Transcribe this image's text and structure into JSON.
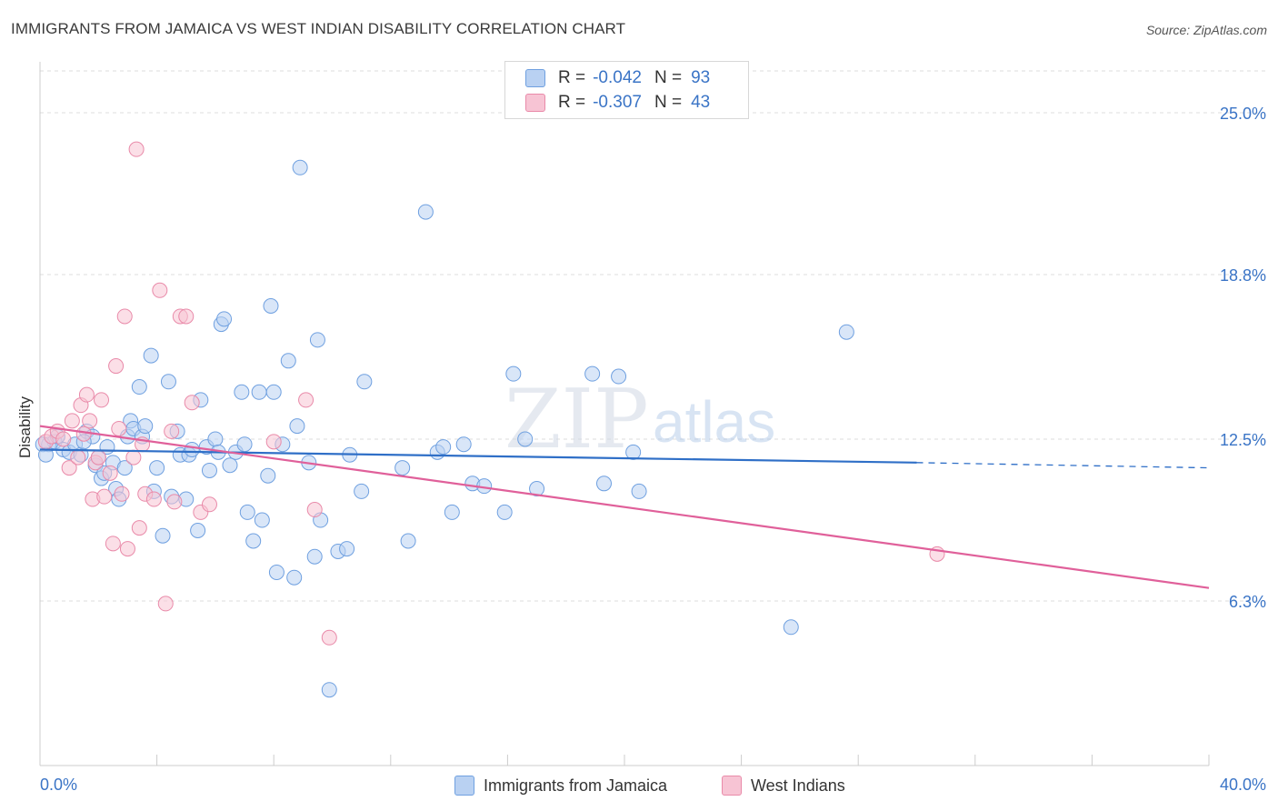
{
  "title": "IMMIGRANTS FROM JAMAICA VS WEST INDIAN DISABILITY CORRELATION CHART",
  "source": "Source: ZipAtlas.com",
  "watermark": {
    "part1": "ZIP",
    "part2": "atlas"
  },
  "legend": [
    {
      "r_label": "R =",
      "r_value": "-0.042",
      "n_label": "N =",
      "n_value": "93"
    },
    {
      "r_label": "R =",
      "r_value": "-0.307",
      "n_label": "N =",
      "n_value": "43"
    }
  ],
  "chart_data": {
    "type": "scatter",
    "title": "IMMIGRANTS FROM JAMAICA VS WEST INDIAN DISABILITY CORRELATION CHART",
    "xlabel": "",
    "ylabel": "Disability",
    "xlim": [
      0,
      40
    ],
    "ylim": [
      0,
      26.6
    ],
    "x_tick_labels": [
      "0.0%",
      "40.0%"
    ],
    "y_ticks": [
      6.3,
      12.5,
      18.8,
      25.0
    ],
    "y_tick_labels": [
      "6.3%",
      "12.5%",
      "18.8%",
      "25.0%"
    ],
    "grid": true,
    "legend_position": "bottom",
    "series": [
      {
        "name": "Immigrants from Jamaica",
        "color": "#6fa0e0",
        "fill": "#b9d1f2",
        "trend": {
          "x1": 0,
          "y1": 12.1,
          "x2": 30,
          "y2": 11.6,
          "dash_to_x": 40,
          "dash_to_y": 11.4,
          "color": "#2f6fc7"
        },
        "points": [
          [
            0.3,
            12.3
          ],
          [
            0.5,
            12.4
          ],
          [
            0.6,
            12.6
          ],
          [
            0.8,
            12.1
          ],
          [
            1.0,
            12.0
          ],
          [
            1.2,
            12.3
          ],
          [
            1.4,
            11.9
          ],
          [
            1.6,
            12.8
          ],
          [
            1.8,
            12.6
          ],
          [
            1.9,
            11.5
          ],
          [
            2.0,
            11.8
          ],
          [
            2.1,
            11.0
          ],
          [
            2.2,
            11.2
          ],
          [
            2.3,
            12.2
          ],
          [
            2.5,
            11.6
          ],
          [
            2.6,
            10.6
          ],
          [
            2.7,
            10.2
          ],
          [
            2.9,
            11.4
          ],
          [
            3.0,
            12.6
          ],
          [
            3.1,
            13.2
          ],
          [
            3.2,
            12.9
          ],
          [
            3.4,
            14.5
          ],
          [
            3.5,
            12.6
          ],
          [
            3.6,
            13.0
          ],
          [
            3.8,
            15.7
          ],
          [
            3.9,
            10.5
          ],
          [
            4.0,
            11.4
          ],
          [
            4.2,
            8.8
          ],
          [
            4.4,
            14.7
          ],
          [
            4.5,
            10.3
          ],
          [
            4.7,
            12.8
          ],
          [
            4.8,
            11.9
          ],
          [
            5.0,
            10.2
          ],
          [
            5.1,
            11.9
          ],
          [
            5.2,
            12.1
          ],
          [
            5.4,
            9.0
          ],
          [
            5.5,
            14.0
          ],
          [
            5.7,
            12.2
          ],
          [
            5.8,
            11.3
          ],
          [
            6.0,
            12.5
          ],
          [
            6.1,
            12.0
          ],
          [
            6.2,
            16.9
          ],
          [
            6.3,
            17.1
          ],
          [
            6.5,
            11.5
          ],
          [
            6.7,
            12.0
          ],
          [
            6.9,
            14.3
          ],
          [
            7.0,
            12.3
          ],
          [
            7.1,
            9.7
          ],
          [
            7.3,
            8.6
          ],
          [
            7.5,
            14.3
          ],
          [
            7.6,
            9.4
          ],
          [
            7.8,
            11.1
          ],
          [
            7.9,
            17.6
          ],
          [
            8.0,
            14.3
          ],
          [
            8.1,
            7.4
          ],
          [
            8.3,
            12.3
          ],
          [
            8.5,
            15.5
          ],
          [
            8.7,
            7.2
          ],
          [
            8.8,
            13.0
          ],
          [
            8.9,
            22.9
          ],
          [
            9.2,
            11.6
          ],
          [
            9.4,
            8.0
          ],
          [
            9.5,
            16.3
          ],
          [
            9.6,
            9.4
          ],
          [
            9.9,
            2.9
          ],
          [
            10.2,
            8.2
          ],
          [
            10.5,
            8.3
          ],
          [
            10.6,
            11.9
          ],
          [
            11.0,
            10.5
          ],
          [
            11.1,
            14.7
          ],
          [
            12.4,
            11.4
          ],
          [
            12.6,
            8.6
          ],
          [
            13.2,
            21.2
          ],
          [
            13.6,
            12.0
          ],
          [
            13.8,
            12.2
          ],
          [
            14.1,
            9.7
          ],
          [
            14.5,
            12.3
          ],
          [
            14.8,
            10.8
          ],
          [
            15.2,
            10.7
          ],
          [
            15.9,
            9.7
          ],
          [
            16.2,
            15.0
          ],
          [
            16.6,
            12.5
          ],
          [
            17.0,
            10.6
          ],
          [
            18.9,
            15.0
          ],
          [
            19.3,
            10.8
          ],
          [
            19.8,
            14.9
          ],
          [
            20.3,
            12.0
          ],
          [
            20.5,
            10.5
          ],
          [
            25.7,
            5.3
          ],
          [
            27.6,
            16.6
          ],
          [
            0.1,
            12.3
          ],
          [
            0.2,
            11.9
          ],
          [
            1.5,
            12.4
          ]
        ]
      },
      {
        "name": "West Indians",
        "color": "#e98aa9",
        "fill": "#f7c4d4",
        "trend": {
          "x1": 0,
          "y1": 13.0,
          "x2": 40,
          "y2": 6.8,
          "color": "#e0609a"
        },
        "points": [
          [
            0.2,
            12.4
          ],
          [
            0.4,
            12.6
          ],
          [
            0.6,
            12.8
          ],
          [
            0.8,
            12.5
          ],
          [
            1.0,
            11.4
          ],
          [
            1.1,
            13.2
          ],
          [
            1.3,
            11.8
          ],
          [
            1.4,
            13.8
          ],
          [
            1.5,
            12.7
          ],
          [
            1.6,
            14.2
          ],
          [
            1.7,
            13.2
          ],
          [
            1.8,
            10.2
          ],
          [
            1.9,
            11.6
          ],
          [
            2.0,
            11.8
          ],
          [
            2.1,
            14.0
          ],
          [
            2.2,
            10.3
          ],
          [
            2.4,
            11.2
          ],
          [
            2.5,
            8.5
          ],
          [
            2.6,
            15.3
          ],
          [
            2.7,
            12.9
          ],
          [
            2.8,
            10.4
          ],
          [
            2.9,
            17.2
          ],
          [
            3.0,
            8.3
          ],
          [
            3.2,
            11.8
          ],
          [
            3.3,
            23.6
          ],
          [
            3.4,
            9.1
          ],
          [
            3.5,
            12.3
          ],
          [
            3.6,
            10.4
          ],
          [
            3.9,
            10.2
          ],
          [
            4.1,
            18.2
          ],
          [
            4.3,
            6.2
          ],
          [
            4.5,
            12.8
          ],
          [
            4.6,
            10.1
          ],
          [
            4.8,
            17.2
          ],
          [
            5.0,
            17.2
          ],
          [
            5.2,
            13.9
          ],
          [
            5.5,
            9.7
          ],
          [
            5.8,
            10.0
          ],
          [
            8.0,
            12.4
          ],
          [
            9.1,
            14.0
          ],
          [
            9.4,
            9.8
          ],
          [
            9.9,
            4.9
          ],
          [
            30.7,
            8.1
          ]
        ]
      }
    ]
  }
}
